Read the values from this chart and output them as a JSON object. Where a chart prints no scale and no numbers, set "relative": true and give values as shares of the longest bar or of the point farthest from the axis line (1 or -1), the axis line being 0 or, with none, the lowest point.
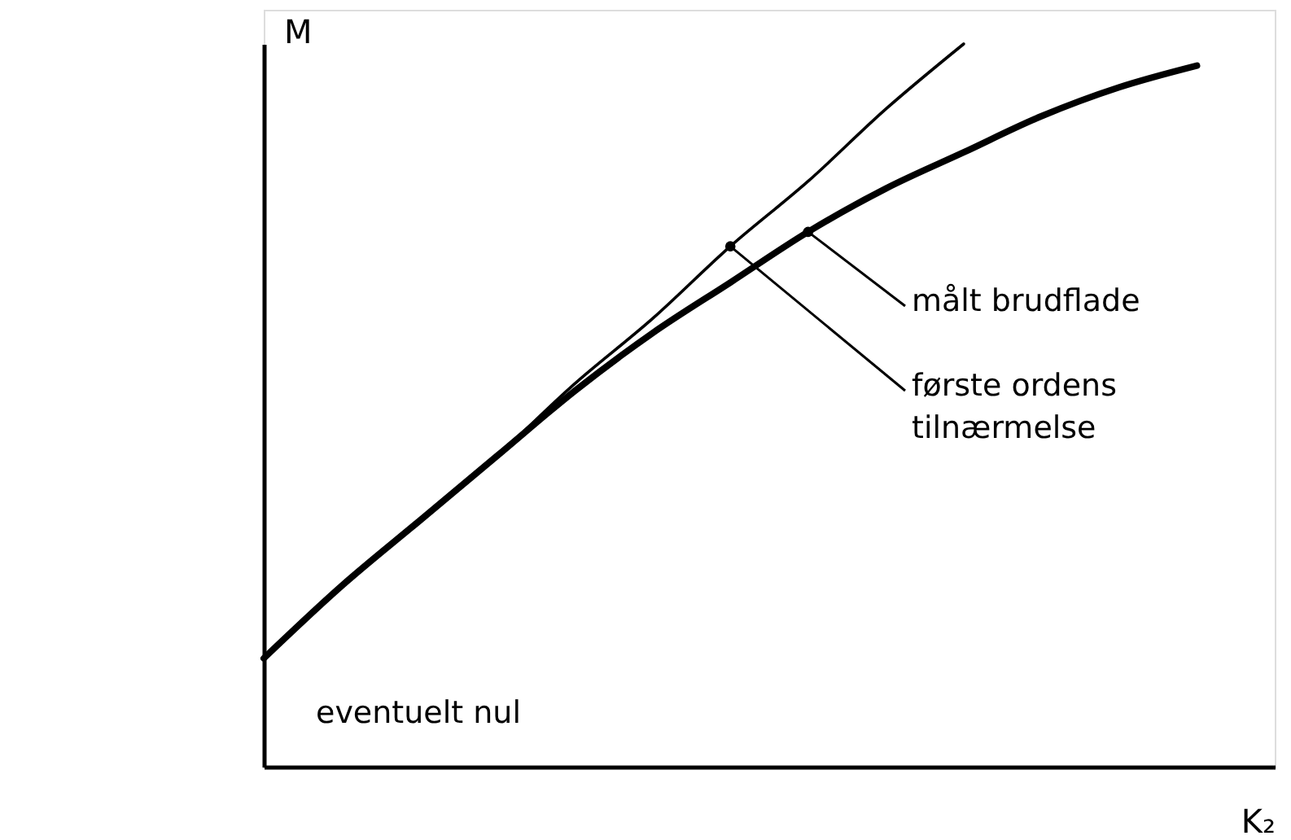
{
  "chart_data": {
    "type": "line",
    "relative": true,
    "xlabel": "K₂",
    "ylabel": "M",
    "categories": [
      null,
      null,
      null,
      null,
      null,
      null,
      null,
      null,
      null,
      null,
      null,
      null,
      null,
      null
    ],
    "series": [
      {
        "name": "målt brudflade",
        "color": "#000000",
        "values": [
          0.15,
          0.25,
          0.34,
          0.43,
          0.52,
          0.6,
          0.67,
          0.74,
          0.8,
          0.85,
          0.9,
          0.94,
          0.97,
          null
        ]
      },
      {
        "name": "første ordens\ntilnærmelse",
        "color": "#000000",
        "values": [
          0.15,
          0.25,
          0.34,
          0.43,
          0.53,
          0.62,
          0.72,
          0.81,
          0.91,
          1.0,
          null,
          null,
          null,
          null
        ]
      }
    ],
    "annotations": [
      "eventuelt nul"
    ],
    "grid": false
  }
}
